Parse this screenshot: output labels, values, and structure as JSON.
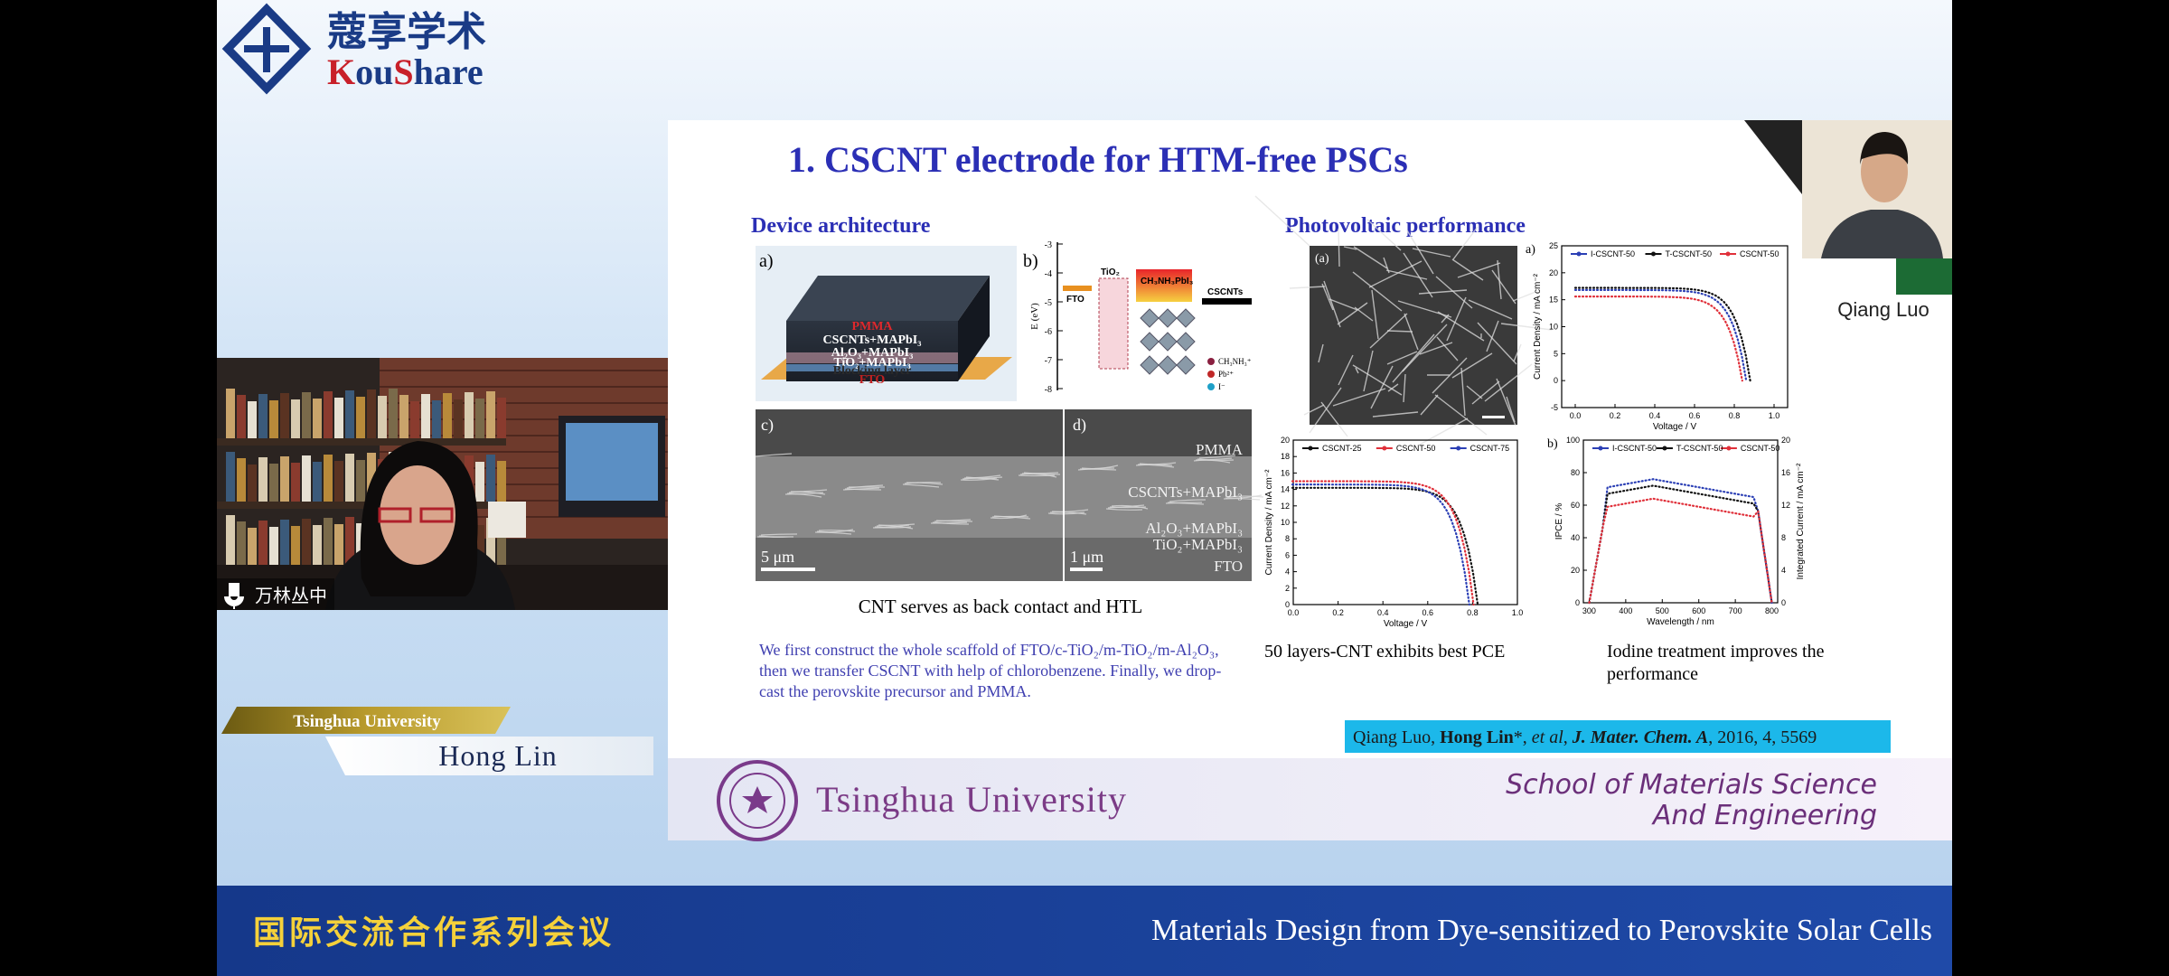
{
  "logo": {
    "name_cn": "蔻享学术",
    "name_en_parts": [
      "K",
      "ou",
      "S",
      "hare"
    ]
  },
  "webcam": {
    "speaker_label": "万林丛中"
  },
  "name_plate": {
    "affiliation": "Tsinghua University",
    "name": "Hong Lin"
  },
  "thumbnail": {
    "name": "Qiang Luo"
  },
  "slide": {
    "title": "1. CSCNT electrode for HTM-free PSCs",
    "left_heading": "Device architecture",
    "right_heading": "Photovoltaic performance",
    "device_figure": {
      "panel": "a)",
      "layers": [
        "PMMA",
        "CSCNTs+MAPbI₃",
        "Al₂O₃+MAPbI₃",
        "TiO₂+MAPbI₃",
        "Blocking layer",
        "FTO"
      ]
    },
    "energy_figure": {
      "panel": "b)",
      "axis_label": "E (eV)",
      "tick_labels": [
        "-3",
        "-4",
        "-5",
        "-6",
        "-7",
        "-8"
      ],
      "materials": [
        "FTO",
        "TiO₂",
        "CH₃NH₃PbI₃",
        "CSCNTs"
      ],
      "legend": [
        "CH₃NH₃⁺",
        "Pb²⁺",
        "I⁻"
      ]
    },
    "sem_figure": {
      "panels": [
        "c)",
        "d)"
      ],
      "scale_bars": [
        "5 μm",
        "1 μm"
      ],
      "layers": [
        "PMMA",
        "CSCNTs+MAPbI₃",
        "Al₂O₃+MAPbI₃",
        "TiO₂+MAPbI₃",
        "FTO"
      ]
    },
    "left_caption": "CNT serves as back contact and HTL",
    "paragraph": [
      "We first construct the whole scaffold of FTO/c-TiO₂/m-TiO₂/m-Al₂O₃,",
      "then we transfer CSCNT with help of chlorobenzene. Finally, we drop-",
      "cast the perovskite precursor and PMMA."
    ],
    "sem_top_panel": "(a)",
    "jv_top": {
      "panel": "a)",
      "series": [
        {
          "name": "I-CSCNT-50",
          "color": "#2b3fb5"
        },
        {
          "name": "T-CSCNT-50",
          "color": "#111111"
        },
        {
          "name": "CSCNT-50",
          "color": "#e0303a"
        }
      ],
      "y_label": "Current Density / mA cm⁻²",
      "x_label": "Voltage / V",
      "ytick_labels": [
        "-5",
        "0",
        "5",
        "10",
        "15",
        "20",
        "25"
      ],
      "xtick_labels": [
        "0.0",
        "0.2",
        "0.4",
        "0.6",
        "0.8",
        "1.0"
      ]
    },
    "jv_bottom": {
      "series": [
        {
          "name": "CSCNT-25",
          "color": "#111111"
        },
        {
          "name": "CSCNT-50",
          "color": "#e0303a"
        },
        {
          "name": "CSCNT-75",
          "color": "#2b3fb5"
        }
      ],
      "y_label": "Current Density / mA cm⁻²",
      "x_label": "Voltage / V",
      "ytick_labels": [
        "0",
        "2",
        "4",
        "6",
        "8",
        "10",
        "12",
        "14",
        "16",
        "18",
        "20"
      ],
      "xtick_labels": [
        "0.0",
        "0.2",
        "0.4",
        "0.6",
        "0.8",
        "1.0"
      ]
    },
    "ipce": {
      "panel": "b)",
      "series": [
        {
          "name": "I-CSCNT-50",
          "color": "#2b3fb5"
        },
        {
          "name": "T-CSCNT-50",
          "color": "#111111"
        },
        {
          "name": "CSCNT-50",
          "color": "#e0303a"
        }
      ],
      "y_label": "IPCE / %",
      "y2_label": "Integrated Current / mA cm⁻²",
      "x_label": "Wavelength / nm",
      "ytick_labels": [
        "0",
        "20",
        "40",
        "60",
        "80",
        "100"
      ],
      "y2tick_labels": [
        "0",
        "4",
        "8",
        "12",
        "16",
        "20"
      ],
      "xtick_labels": [
        "300",
        "400",
        "500",
        "600",
        "700",
        "800"
      ]
    },
    "middle_caption": "50 layers-CNT exhibits best PCE",
    "right_caption": [
      "Iodine treatment improves the",
      "performance"
    ],
    "citation": [
      {
        "text": "Qiang Luo, ",
        "style": "normal"
      },
      {
        "text": "Hong Lin",
        "style": "bold"
      },
      {
        "text": "*, ",
        "style": "normal"
      },
      {
        "text": "et al",
        "style": "italic"
      },
      {
        "text": ", ",
        "style": "normal"
      },
      {
        "text": "J. Mater. Chem. A",
        "style": "bold-italic"
      },
      {
        "text": ", 2016, 4, 5569",
        "style": "normal"
      }
    ],
    "footer": {
      "university": "Tsinghua University",
      "school": [
        "School of Materials Science",
        "And Engineering"
      ]
    }
  },
  "banner": {
    "series_cn": "国际交流合作系列会议",
    "talk_title": "Materials Design from Dye-sensitized to Perovskite Solar Cells"
  }
}
